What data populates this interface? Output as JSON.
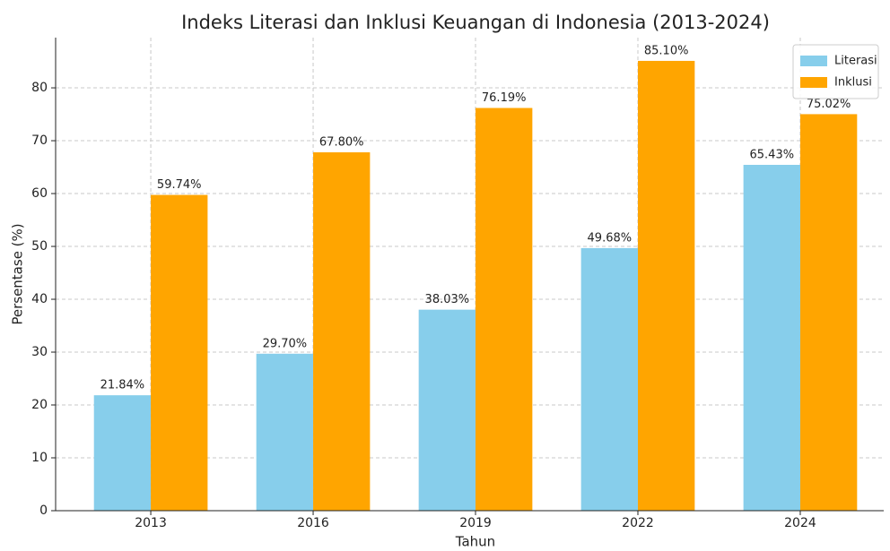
{
  "chart_data": {
    "type": "bar",
    "title": "Indeks Literasi dan Inklusi Keuangan di Indonesia (2013-2024)",
    "x_label": "Tahun",
    "y_label": "Persentase (%)",
    "categories": [
      "2013",
      "2016",
      "2019",
      "2022",
      "2024"
    ],
    "series": [
      {
        "name": "Literasi",
        "color": "#87ceeb",
        "values": [
          21.84,
          29.7,
          38.03,
          49.68,
          65.43
        ],
        "value_labels": [
          "21.84%",
          "29.70%",
          "38.03%",
          "49.68%",
          "65.43%"
        ]
      },
      {
        "name": "Inklusi",
        "color": "#ffa500",
        "values": [
          59.74,
          67.8,
          76.19,
          85.1,
          75.02
        ],
        "value_labels": [
          "59.74%",
          "67.80%",
          "76.19%",
          "85.10%",
          "75.02%"
        ]
      }
    ],
    "ylim": [
      0,
      89.5
    ],
    "yticks": [
      0,
      10,
      20,
      30,
      40,
      50,
      60,
      70,
      80
    ],
    "grid": true,
    "legend": "upper right"
  }
}
